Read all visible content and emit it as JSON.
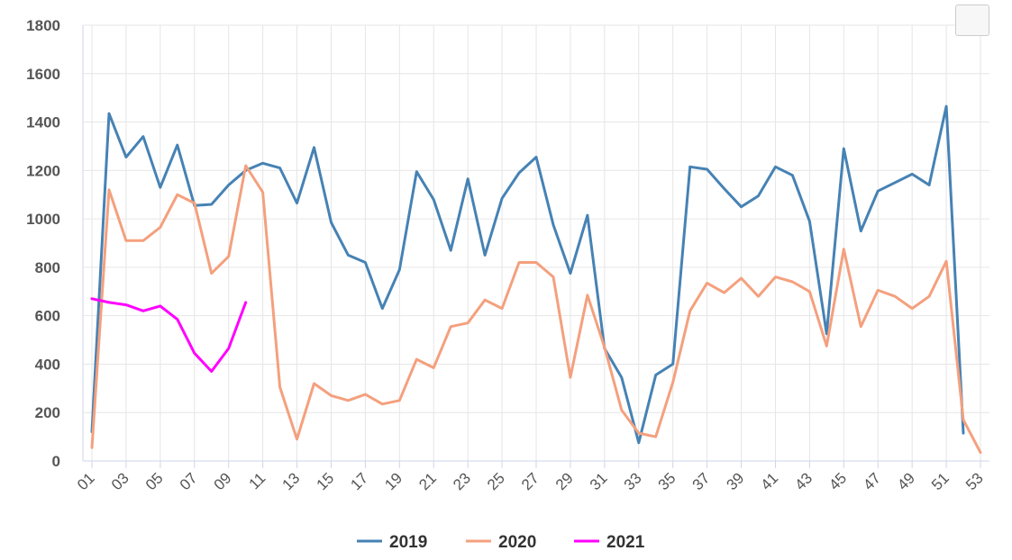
{
  "colors": {
    "grid": "#e6e6e6",
    "axis": "#ccd6eb",
    "series_2019": "#4682b4",
    "series_2020": "#f4a07e",
    "series_2021": "#ff00ff"
  },
  "chart_data": {
    "type": "line",
    "x": [
      "01",
      "02",
      "03",
      "04",
      "05",
      "06",
      "07",
      "08",
      "09",
      "10",
      "11",
      "12",
      "13",
      "14",
      "15",
      "16",
      "17",
      "18",
      "19",
      "20",
      "21",
      "22",
      "23",
      "24",
      "25",
      "26",
      "27",
      "28",
      "29",
      "30",
      "31",
      "32",
      "33",
      "34",
      "35",
      "36",
      "37",
      "38",
      "39",
      "40",
      "41",
      "42",
      "43",
      "44",
      "45",
      "46",
      "47",
      "48",
      "49",
      "50",
      "51",
      "52",
      "53"
    ],
    "x_tick_labels": [
      "01",
      "03",
      "05",
      "07",
      "09",
      "11",
      "13",
      "15",
      "17",
      "19",
      "21",
      "23",
      "25",
      "27",
      "29",
      "31",
      "33",
      "35",
      "37",
      "39",
      "41",
      "43",
      "45",
      "47",
      "49",
      "51",
      "53"
    ],
    "ylim": [
      0,
      1800
    ],
    "y_ticks": [
      0,
      200,
      400,
      600,
      800,
      1000,
      1200,
      1400,
      1600,
      1800
    ],
    "grid": true,
    "legend_position": "bottom-center",
    "series": [
      {
        "name": "2019",
        "color": "#4682b4",
        "values": [
          120,
          1435,
          1255,
          1340,
          1130,
          1305,
          1055,
          1060,
          1140,
          1200,
          1230,
          1210,
          1065,
          1295,
          985,
          850,
          820,
          630,
          790,
          1195,
          1080,
          870,
          1165,
          850,
          1085,
          1190,
          1255,
          975,
          775,
          1015,
          465,
          345,
          75,
          355,
          400,
          1215,
          1205,
          1125,
          1050,
          1095,
          1215,
          1180,
          990,
          525,
          1290,
          950,
          1115,
          1150,
          1185,
          1140,
          1465,
          115,
          null
        ]
      },
      {
        "name": "2020",
        "color": "#f4a07e",
        "values": [
          55,
          1120,
          910,
          910,
          965,
          1100,
          1065,
          775,
          845,
          1220,
          1110,
          305,
          90,
          320,
          270,
          250,
          275,
          235,
          250,
          420,
          385,
          555,
          570,
          665,
          630,
          820,
          820,
          760,
          345,
          685,
          470,
          210,
          115,
          100,
          325,
          620,
          735,
          695,
          755,
          680,
          760,
          740,
          700,
          475,
          875,
          555,
          705,
          680,
          630,
          680,
          825,
          170,
          35
        ]
      },
      {
        "name": "2021",
        "color": "#ff00ff",
        "values": [
          670,
          655,
          645,
          620,
          640,
          585,
          445,
          370,
          465,
          655,
          null,
          null,
          null,
          null,
          null,
          null,
          null,
          null,
          null,
          null,
          null,
          null,
          null,
          null,
          null,
          null,
          null,
          null,
          null,
          null,
          null,
          null,
          null,
          null,
          null,
          null,
          null,
          null,
          null,
          null,
          null,
          null,
          null,
          null,
          null,
          null,
          null,
          null,
          null,
          null,
          null,
          null,
          null
        ]
      }
    ]
  }
}
